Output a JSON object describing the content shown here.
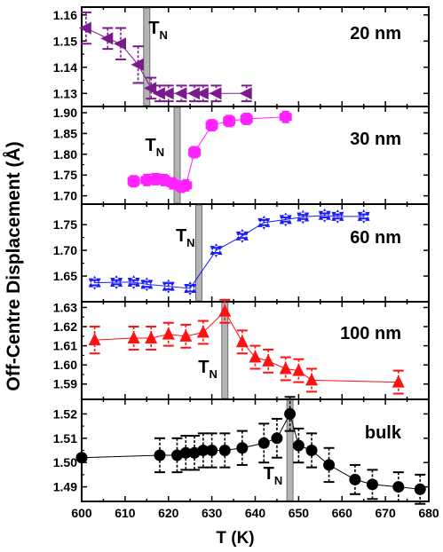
{
  "chart_data": {
    "type": "scatter",
    "xlabel": "T (K)",
    "ylabel": "Off-Centre Displacement (Å)",
    "xlim": [
      600,
      680
    ],
    "x_ticks": [
      "600",
      "610",
      "620",
      "630",
      "640",
      "650",
      "660",
      "670",
      "680"
    ],
    "tn_main": "T",
    "tn_sub": "N",
    "panels": [
      {
        "label": "20 nm",
        "color": "#7a1a8c",
        "marker": "triangle-left",
        "ylim": [
          1.125,
          1.163
        ],
        "y_ticks": [
          "1.13",
          "1.14",
          "1.15",
          "1.16"
        ],
        "y_tick_values": [
          1.13,
          1.14,
          1.15,
          1.16
        ],
        "tn": 615,
        "x": [
          601,
          606,
          609,
          613,
          616,
          618,
          620,
          623,
          626,
          628,
          631,
          638
        ],
        "y": [
          1.155,
          1.151,
          1.149,
          1.141,
          1.132,
          1.13,
          1.13,
          1.13,
          1.13,
          1.13,
          1.13,
          1.13
        ],
        "err": [
          0.006,
          0.004,
          0.006,
          0.007,
          0.004,
          0.003,
          0.003,
          0.003,
          0.003,
          0.003,
          0.003,
          0.003
        ]
      },
      {
        "label": "30 nm",
        "color": "#ff22ff",
        "marker": "cross",
        "ylim": [
          1.68,
          1.915
        ],
        "y_ticks": [
          "1.70",
          "1.75",
          "1.80",
          "1.85",
          "1.90"
        ],
        "y_tick_values": [
          1.7,
          1.75,
          1.8,
          1.85,
          1.9
        ],
        "tn": 622,
        "x": [
          612,
          615,
          617,
          619,
          621,
          623,
          624,
          626,
          630,
          634,
          638,
          647
        ],
        "y": [
          1.735,
          1.738,
          1.74,
          1.738,
          1.73,
          1.722,
          1.725,
          1.805,
          1.87,
          1.88,
          1.885,
          1.89
        ],
        "err": [
          0.01,
          0.008,
          0.012,
          0.01,
          0.008,
          0.01,
          0.008,
          0.01,
          0.01,
          0.01,
          0.01,
          0.008
        ]
      },
      {
        "label": "60 nm",
        "color": "#1a1aff",
        "marker": "star",
        "ylim": [
          1.6,
          1.79
        ],
        "y_ticks": [
          "1.65",
          "1.70",
          "1.75"
        ],
        "y_tick_values": [
          1.65,
          1.7,
          1.75
        ],
        "tn": 627,
        "x": [
          603,
          608,
          612,
          615,
          620,
          625,
          631,
          637,
          642,
          647,
          651,
          656,
          659,
          665
        ],
        "y": [
          1.637,
          1.638,
          1.638,
          1.634,
          1.63,
          1.626,
          1.7,
          1.728,
          1.754,
          1.76,
          1.765,
          1.768,
          1.766,
          1.766
        ],
        "err": [
          0.005,
          0.004,
          0.004,
          0.005,
          0.006,
          0.006,
          0.005,
          0.004,
          0.005,
          0.004,
          0.004,
          0.004,
          0.004,
          0.004
        ]
      },
      {
        "label": "100 nm",
        "color": "#ff1111",
        "marker": "triangle-up",
        "ylim": [
          1.582,
          1.633
        ],
        "y_ticks": [
          "1.59",
          "1.60",
          "1.61",
          "1.62",
          "1.63"
        ],
        "y_tick_values": [
          1.59,
          1.6,
          1.61,
          1.62,
          1.63
        ],
        "tn": 633,
        "x": [
          603,
          612,
          616,
          620,
          624,
          628,
          633,
          637,
          640,
          643,
          647,
          650,
          653,
          673
        ],
        "y": [
          1.613,
          1.614,
          1.614,
          1.616,
          1.615,
          1.617,
          1.628,
          1.612,
          1.604,
          1.602,
          1.598,
          1.597,
          1.592,
          1.591
        ],
        "err": [
          0.007,
          0.006,
          0.006,
          0.006,
          0.006,
          0.006,
          0.006,
          0.006,
          0.006,
          0.006,
          0.006,
          0.006,
          0.006,
          0.006
        ]
      },
      {
        "label": "bulk",
        "color": "#000000",
        "marker": "circle",
        "ylim": [
          1.484,
          1.526
        ],
        "y_ticks": [
          "1.49",
          "1.50",
          "1.51",
          "1.52"
        ],
        "y_tick_values": [
          1.49,
          1.5,
          1.51,
          1.52
        ],
        "tn": 648,
        "x": [
          600,
          618,
          622,
          624,
          626,
          628,
          630,
          633,
          637,
          642,
          645,
          648,
          650,
          653,
          657,
          663,
          667,
          673,
          678
        ],
        "y": [
          1.502,
          1.503,
          1.503,
          1.504,
          1.504,
          1.505,
          1.505,
          1.505,
          1.506,
          1.508,
          1.51,
          1.52,
          1.507,
          1.505,
          1.499,
          1.493,
          1.491,
          1.49,
          1.489
        ],
        "err": [
          0,
          0.007,
          0.007,
          0.007,
          0.007,
          0.007,
          0.007,
          0.007,
          0.007,
          0.008,
          0.008,
          0.007,
          0.007,
          0.007,
          0.007,
          0.006,
          0.006,
          0.006,
          0.006
        ]
      }
    ]
  }
}
